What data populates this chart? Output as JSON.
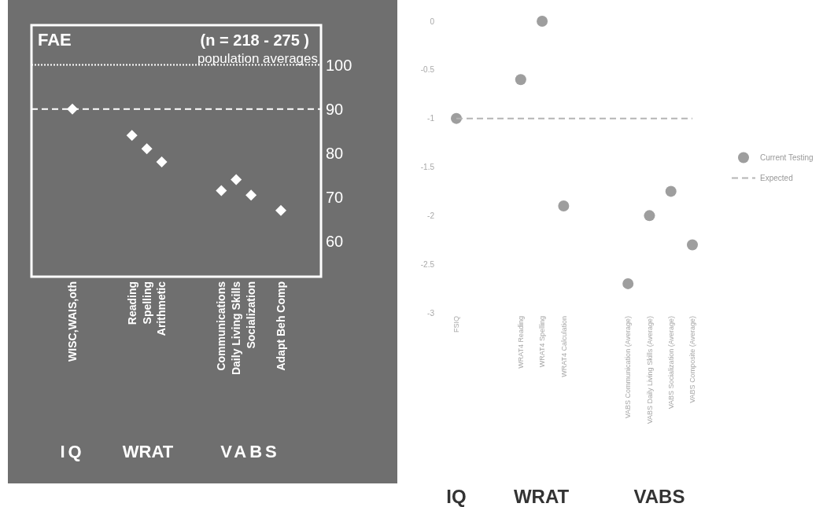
{
  "chart_data": [
    {
      "type": "scatter",
      "categories": [
        "WISC,WAIS,oth",
        null,
        null,
        null,
        "Reading",
        "Spelling",
        "Arithmetic",
        null,
        null,
        null,
        "Communications",
        "Daily Living Skills",
        "Socialization",
        null,
        "Adapt Beh Comp"
      ],
      "series": [
        {
          "type": "scatter",
          "color": "#ffffff",
          "marker": "diamond",
          "values": [
            90,
            null,
            null,
            null,
            84,
            81,
            78,
            null,
            null,
            null,
            71.5,
            74,
            70.5,
            null,
            67
          ]
        }
      ],
      "ylim": [
        52,
        109
      ],
      "yticks": [
        100,
        90,
        80,
        70,
        60
      ],
      "ref_lines": [
        {
          "axis": "y",
          "value": 100,
          "label": "population averages",
          "line_style": "dotted",
          "color": "#ffffff"
        },
        {
          "axis": "y",
          "value": 90,
          "line_style": "dashed",
          "color": "#ffffff"
        }
      ],
      "annotations": [
        "FAE",
        "(n = 218 - 275 )",
        "IQ",
        "WRAT",
        "VABS"
      ]
    },
    {
      "type": "scatter",
      "categories": [
        "FSIQ",
        null,
        null,
        "WRAT4 Reading",
        "WRAT4 Spelling",
        "WRAT4 Calculation",
        null,
        null,
        "VABS Communication (Average)",
        "VABS Daily Living Skills (Average)",
        "VABS Socialization (Average)",
        "VABS Composite (Average)"
      ],
      "series": [
        {
          "name": "Current Testing",
          "type": "scatter",
          "color": "#9e9e9e",
          "marker": "circle",
          "values": [
            -1,
            null,
            null,
            -0.6,
            0,
            -1.9,
            null,
            null,
            -2.7,
            -2,
            -1.75,
            -2.3
          ]
        },
        {
          "name": "Expected",
          "type": "line",
          "color": "#b5b5b5",
          "line_style": "dashed",
          "values": [
            -1,
            -1,
            -1,
            -1,
            -1,
            -1,
            -1,
            -1,
            -1,
            -1,
            -1,
            -1
          ]
        }
      ],
      "ylim": [
        -3,
        0
      ],
      "yticks": [
        0,
        -0.5,
        -1,
        -1.5,
        -2,
        -2.5,
        -3
      ],
      "legend": "right",
      "annotations": [
        "IQ",
        "WRAT",
        "VABS"
      ]
    }
  ]
}
